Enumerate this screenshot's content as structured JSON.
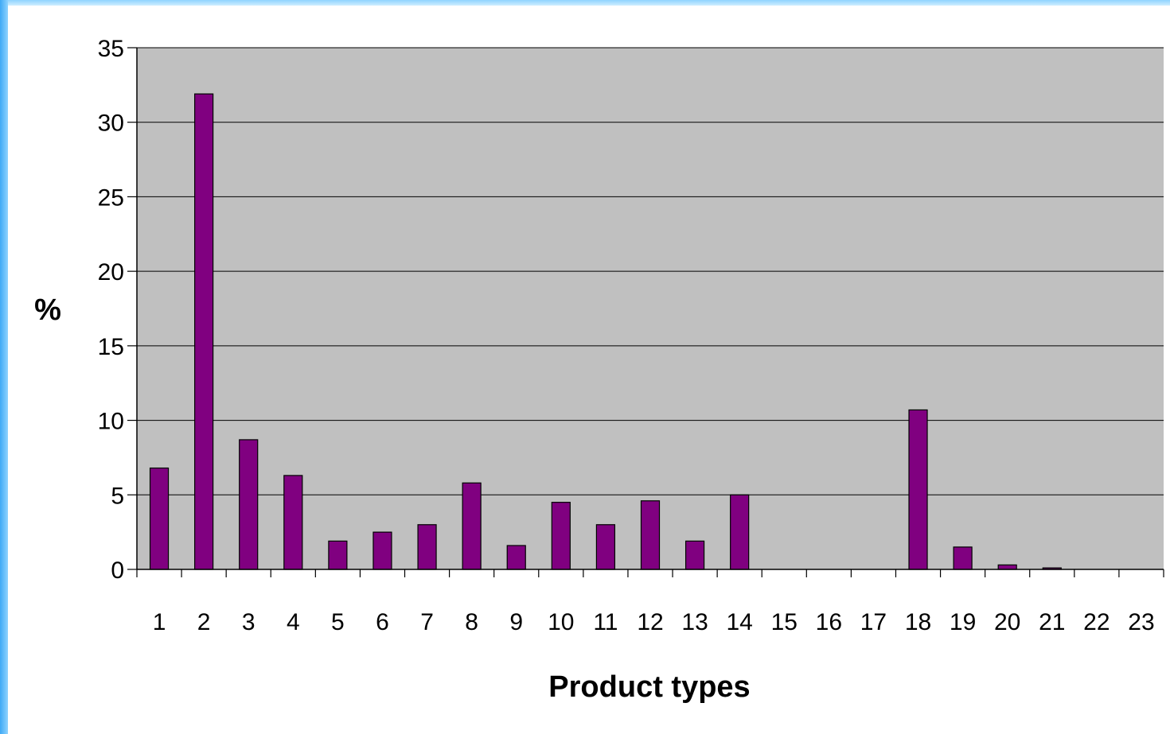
{
  "chart_data": {
    "type": "bar",
    "title": "",
    "xlabel": "Product types",
    "ylabel": "%",
    "ylim": [
      0,
      35
    ],
    "y_ticks": [
      0,
      5,
      10,
      15,
      20,
      25,
      30,
      35
    ],
    "grid": true,
    "categories": [
      "1",
      "2",
      "3",
      "4",
      "5",
      "6",
      "7",
      "8",
      "9",
      "10",
      "11",
      "12",
      "13",
      "14",
      "15",
      "16",
      "17",
      "18",
      "19",
      "20",
      "21",
      "22",
      "23"
    ],
    "values": [
      6.8,
      31.9,
      8.7,
      6.3,
      1.9,
      2.5,
      3.0,
      5.8,
      1.6,
      4.5,
      3.0,
      4.6,
      1.9,
      5.0,
      0,
      0,
      0,
      10.7,
      1.5,
      0.3,
      0.1,
      0,
      0
    ],
    "colors": {
      "bar": "#800080",
      "plot_bg": "#c0c0c0",
      "grid": "#000000"
    }
  }
}
